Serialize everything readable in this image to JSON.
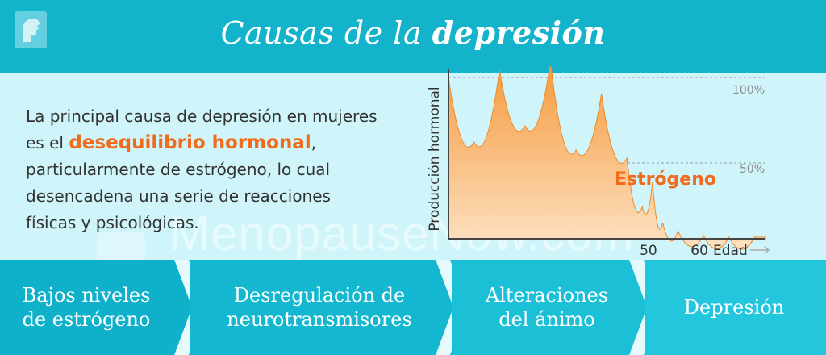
{
  "header": {
    "title_prefix": "Causas de la",
    "title_emphasis": "depresión",
    "logo_icon": "profile-face-icon"
  },
  "intro": {
    "line1": "La principal causa de depresión en mujeres",
    "line2_pre": "es el ",
    "highlight": "desequilibrio hormonal",
    "line2_post": ",",
    "line3": "particularmente de estrógeno, lo cual",
    "line4": "desencadena una serie de reacciones",
    "line5": "físicas y psicológicas."
  },
  "watermark": "MenopauseNow.com",
  "chart_data": {
    "type": "area",
    "series": [
      {
        "name": "Estrógeno",
        "x": [
          10,
          15,
          20,
          25,
          30,
          35,
          40,
          45,
          48,
          50,
          52,
          55,
          60,
          65,
          70
        ],
        "values": [
          100,
          60,
          105,
          70,
          110,
          55,
          90,
          50,
          20,
          35,
          10,
          5,
          2,
          1,
          1
        ]
      }
    ],
    "ylabel": "Producción hormonal",
    "xlabel": "Edad",
    "x_ticks": [
      "50",
      "60"
    ],
    "y_ticks": [
      "100%",
      "50%"
    ],
    "series_label": "Estrógeno",
    "colors": {
      "area_top": "#f59a3c",
      "area_bottom": "#fde2c4",
      "label": "#f26b1a"
    }
  },
  "steps": [
    {
      "line1": "Bajos niveles",
      "line2": "de estrógeno"
    },
    {
      "line1": "Desregulación de",
      "line2": "neurotransmisores"
    },
    {
      "line1": "Alteraciones",
      "line2": "del ánimo"
    },
    {
      "line1": "Depresión",
      "line2": ""
    }
  ],
  "colors": {
    "header": "#14b3cc",
    "body": "#cff4f9",
    "accent": "#f26b1a",
    "steps": [
      "#0fb0c9",
      "#13b7cf",
      "#1bbfd6",
      "#22c6dd"
    ]
  }
}
